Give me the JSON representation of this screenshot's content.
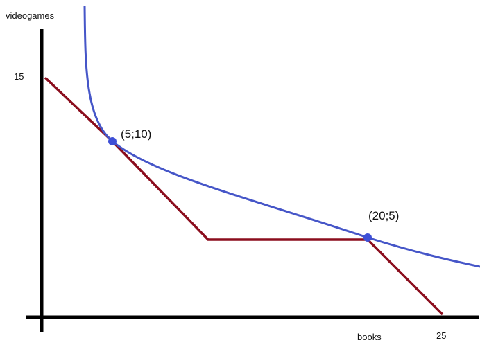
{
  "diagram": {
    "axis_y_label": "videogames",
    "axis_x_label": "books",
    "y_intercept_label": "15",
    "x_intercept_label": "25",
    "point_a_label": "(5;10)",
    "point_b_label": "(20;5)"
  },
  "chart_data": {
    "type": "line",
    "xlabel": "books",
    "ylabel": "videogames",
    "series": [
      {
        "values": [
          [
            0,
            15
          ],
          [
            5,
            10
          ],
          [
            9,
            5
          ],
          [
            20,
            5
          ],
          [
            25,
            0
          ]
        ]
      },
      {
        "values": [
          [
            5,
            10
          ],
          [
            20,
            5
          ]
        ]
      }
    ],
    "points": [
      {
        "label": "(5;10)",
        "x": 5,
        "y": 10
      },
      {
        "label": "(20;5)",
        "x": 20,
        "y": 5
      }
    ],
    "tick_labels": {
      "x": [
        "25"
      ],
      "y": [
        "15"
      ]
    }
  },
  "colors": {
    "axis": "#000000",
    "budget_line": "#8b0d1d",
    "indifference_curve": "#4656c8",
    "points": "#3e4fd6"
  }
}
